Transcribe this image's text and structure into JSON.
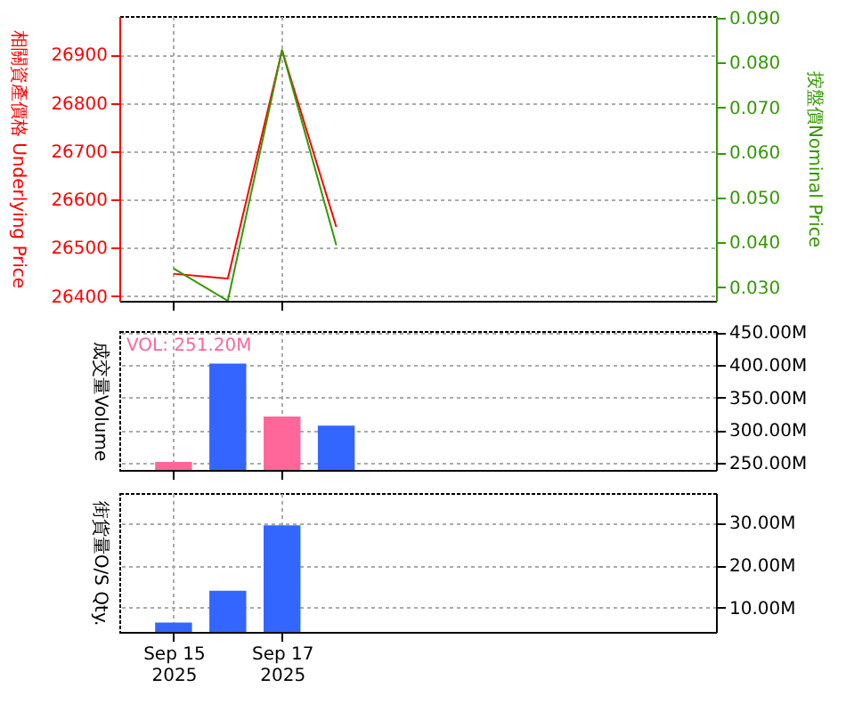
{
  "chart_data": [
    {
      "type": "line",
      "x": [
        "2025-09-15",
        "2025-09-16",
        "2025-09-17",
        "2025-09-18"
      ],
      "xlim": [
        "2025-09-14",
        "2025-09-25"
      ],
      "xticks": [
        {
          "value": "2025-09-15",
          "label": null
        },
        {
          "value": "2025-09-17",
          "label": null
        }
      ],
      "series": [
        {
          "color": "#ff0000",
          "values": [
            26446,
            26436,
            26909,
            26543
          ]
        },
        {
          "color": "#339900",
          "axis": "y2",
          "values": [
            0.0342,
            0.027,
            0.0828,
            0.0394
          ]
        }
      ],
      "ylim": [
        26390,
        26980
      ],
      "yticks": [
        26400,
        26500,
        26600,
        26700,
        26800,
        26900
      ],
      "y2lim": [
        0.027,
        0.0904
      ],
      "y2ticks": [
        {
          "value": 0.03,
          "label": "0.030"
        },
        {
          "value": 0.04,
          "label": "0.040"
        },
        {
          "value": 0.05,
          "label": "0.050"
        },
        {
          "value": 0.06,
          "label": "0.060"
        },
        {
          "value": 0.07,
          "label": "0.070"
        },
        {
          "value": 0.08,
          "label": "0.080"
        },
        {
          "value": 0.09,
          "label": "0.090"
        }
      ],
      "ylabel": "相關資產價格 Underlying Price",
      "y2label": "按盤價Nominal Price",
      "grid": true,
      "tick_labels": "y"
    },
    {
      "type": "bar",
      "x": [
        "2025-09-15",
        "2025-09-16",
        "2025-09-17",
        "2025-09-18"
      ],
      "xlim": [
        "2025-09-14",
        "2025-09-25"
      ],
      "xticks": [
        {
          "value": "2025-09-15",
          "label": null
        },
        {
          "value": "2025-09-17",
          "label": null
        }
      ],
      "values": [
        251200000,
        402000000,
        321000000,
        307000000
      ],
      "colors": [
        "#ff6699",
        "#3366ff",
        "#ff6699",
        "#3366ff"
      ],
      "ylim": [
        239000000,
        452000000
      ],
      "yticks": [
        {
          "value": 250000000,
          "label": "250.00M"
        },
        {
          "value": 300000000,
          "label": "300.00M"
        },
        {
          "value": 350000000,
          "label": "350.00M"
        },
        {
          "value": 400000000,
          "label": "400.00M"
        },
        {
          "value": 450000000,
          "label": "450.00M"
        }
      ],
      "ylabel": "成交量Volume",
      "annotations": [
        "VOL: 251.20M"
      ],
      "grid": true,
      "tick_labels": "y"
    },
    {
      "type": "bar",
      "x": [
        "2025-09-15",
        "2025-09-16",
        "2025-09-17"
      ],
      "xlim": [
        "2025-09-14",
        "2025-09-25"
      ],
      "xticks": [
        {
          "value": "2025-09-15",
          "label": "Sep 15\n2025"
        },
        {
          "value": "2025-09-17",
          "label": "Sep 17\n2025"
        }
      ],
      "values": [
        6500000,
        14000000,
        29400000
      ],
      "colors": [
        "#3366ff",
        "#3366ff",
        "#3366ff"
      ],
      "ylim": [
        4300000,
        37000000
      ],
      "yticks": [
        {
          "value": 10000000,
          "label": "10.00M"
        },
        {
          "value": 20000000,
          "label": "20.00M"
        },
        {
          "value": 30000000,
          "label": "30.00M"
        }
      ],
      "ylabel": "街貨量O/S Qty.",
      "grid": true
    }
  ]
}
